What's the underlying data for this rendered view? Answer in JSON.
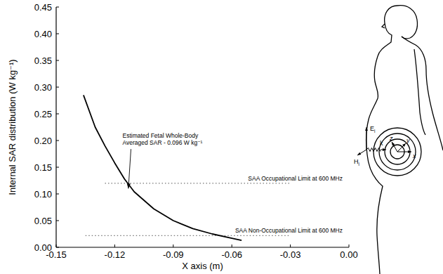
{
  "chart_data": {
    "type": "line",
    "x_label": "X axis (m)",
    "y_label": "Internal SAR distribution (W kg⁻¹)",
    "xlim": [
      -0.15,
      0
    ],
    "xticks": [
      -0.15,
      -0.12,
      -0.09,
      -0.06,
      -0.03,
      {
        "value": 0,
        "label": "0.00"
      }
    ],
    "ylim": [
      0,
      0.45
    ],
    "yticks": [
      {
        "value": 0,
        "label": "0.00"
      },
      0.05,
      {
        "value": 0.1,
        "label": "0.10"
      },
      0.15,
      {
        "value": 0.2,
        "label": "0.20"
      },
      0.25,
      {
        "value": 0.3,
        "label": "0.30"
      },
      0.35,
      {
        "value": 0.4,
        "label": "0.40"
      },
      0.45
    ],
    "grid": false,
    "color": "#000000",
    "x": [
      -0.136,
      -0.13,
      -0.125,
      -0.12,
      -0.115,
      -0.11,
      -0.1,
      -0.09,
      -0.08,
      -0.07,
      -0.06,
      -0.055
    ],
    "values": [
      0.285,
      0.225,
      0.19,
      0.158,
      0.128,
      0.104,
      0.072,
      0.05,
      0.035,
      0.025,
      0.017,
      0.013
    ],
    "reference_lines": [
      {
        "label": "SAA Occupational Limit at 600 MHz",
        "value": 0.12,
        "x_start": -0.125,
        "x_end": -0.03,
        "line_style": "dotted"
      },
      {
        "label": "SAA Non-Occupational Limit at 600 MHz",
        "value": 0.022,
        "x_start": -0.135,
        "x_end": -0.03,
        "line_style": "dotted"
      }
    ],
    "annotation": {
      "text": [
        "Estimated Fetal Whole-Body",
        "Averaged SAR - 0.096 W kg⁻¹"
      ],
      "x": -0.116,
      "y": 0.205,
      "arrow_to": [
        -0.113,
        0.11
      ]
    },
    "illustration": {
      "e_field": "E",
      "h_field": "H",
      "field_subscript": "i",
      "wave_vector": "k",
      "axes": [
        "x",
        "y",
        "z"
      ]
    }
  }
}
